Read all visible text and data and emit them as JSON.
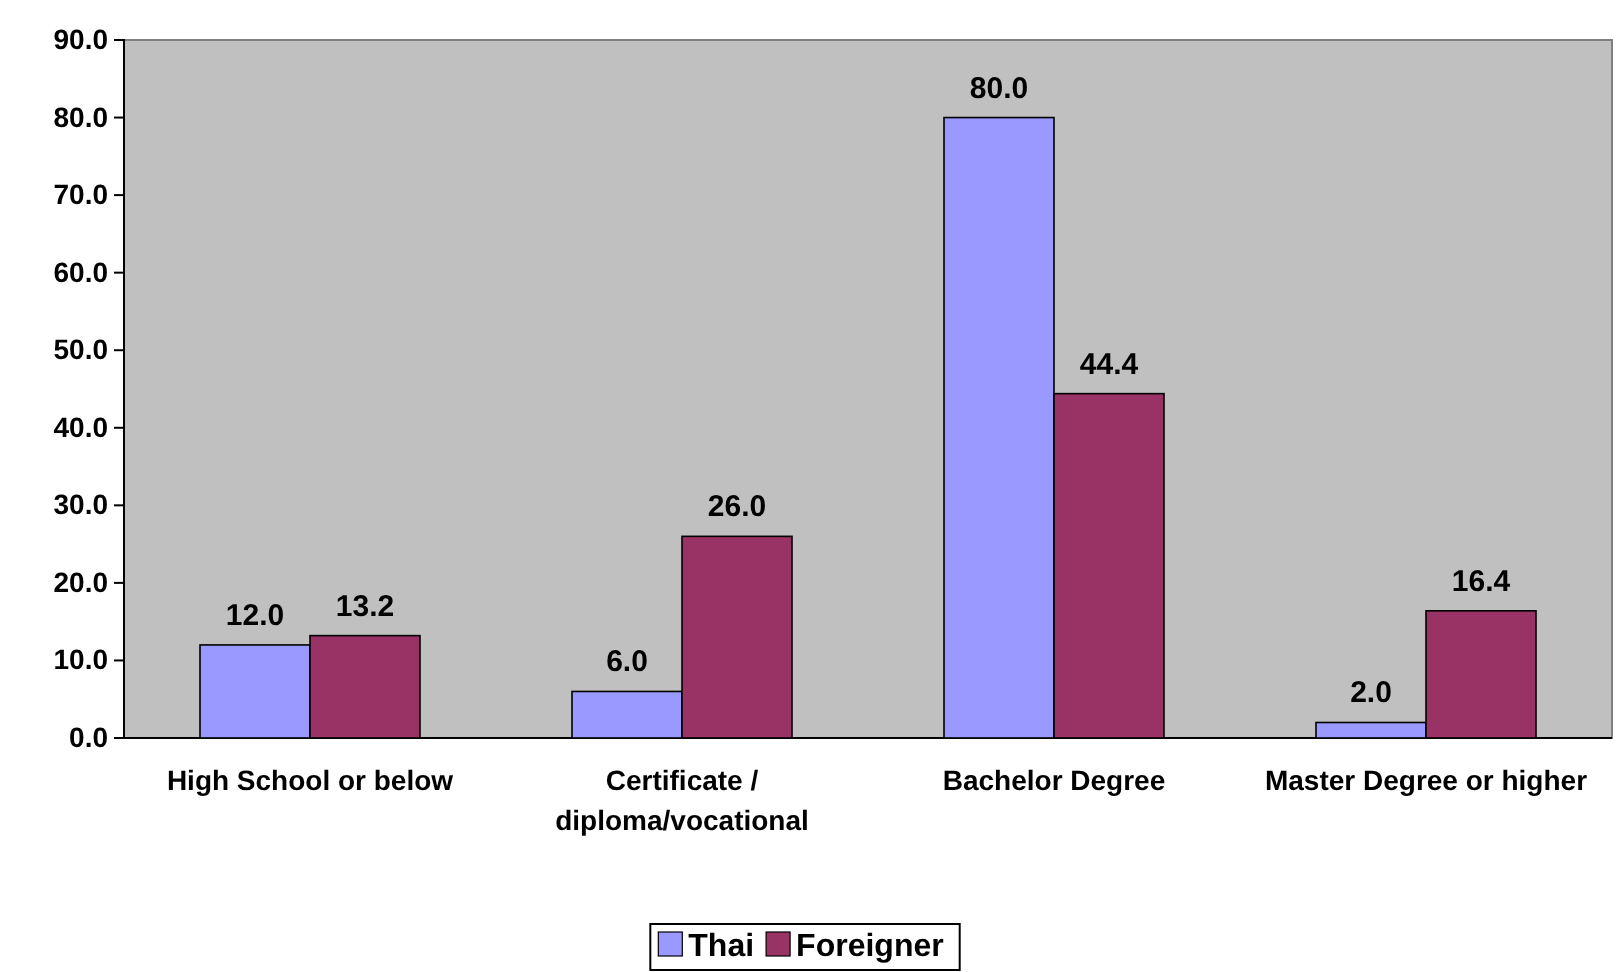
{
  "chart_data": {
    "type": "bar",
    "categories": [
      "High School or below",
      "Certificate / diploma/vocational",
      "Bachelor Degree",
      "Master Degree or higher"
    ],
    "series": [
      {
        "name": "Thai",
        "color": "#9999ff",
        "values": [
          12.0,
          6.0,
          80.0,
          2.0
        ],
        "value_labels": [
          "12.0",
          "6.0",
          "80.0",
          "2.0"
        ]
      },
      {
        "name": "Foreigner",
        "color": "#993366",
        "values": [
          13.2,
          26.0,
          44.4,
          16.4
        ],
        "value_labels": [
          "13.2",
          "26.0",
          "44.4",
          "16.4"
        ]
      }
    ],
    "ylim": [
      0,
      90
    ],
    "yticks": [
      {
        "value": 0,
        "label": "0.0"
      },
      {
        "value": 10,
        "label": "10.0"
      },
      {
        "value": 20,
        "label": "20.0"
      },
      {
        "value": 30,
        "label": "30.0"
      },
      {
        "value": 40,
        "label": "40.0"
      },
      {
        "value": 50,
        "label": "50.0"
      },
      {
        "value": 60,
        "label": "60.0"
      },
      {
        "value": 70,
        "label": "70.0"
      },
      {
        "value": 80,
        "label": "80.0"
      },
      {
        "value": 90,
        "label": "90.0"
      }
    ],
    "grid": false,
    "legend": "bottom"
  }
}
